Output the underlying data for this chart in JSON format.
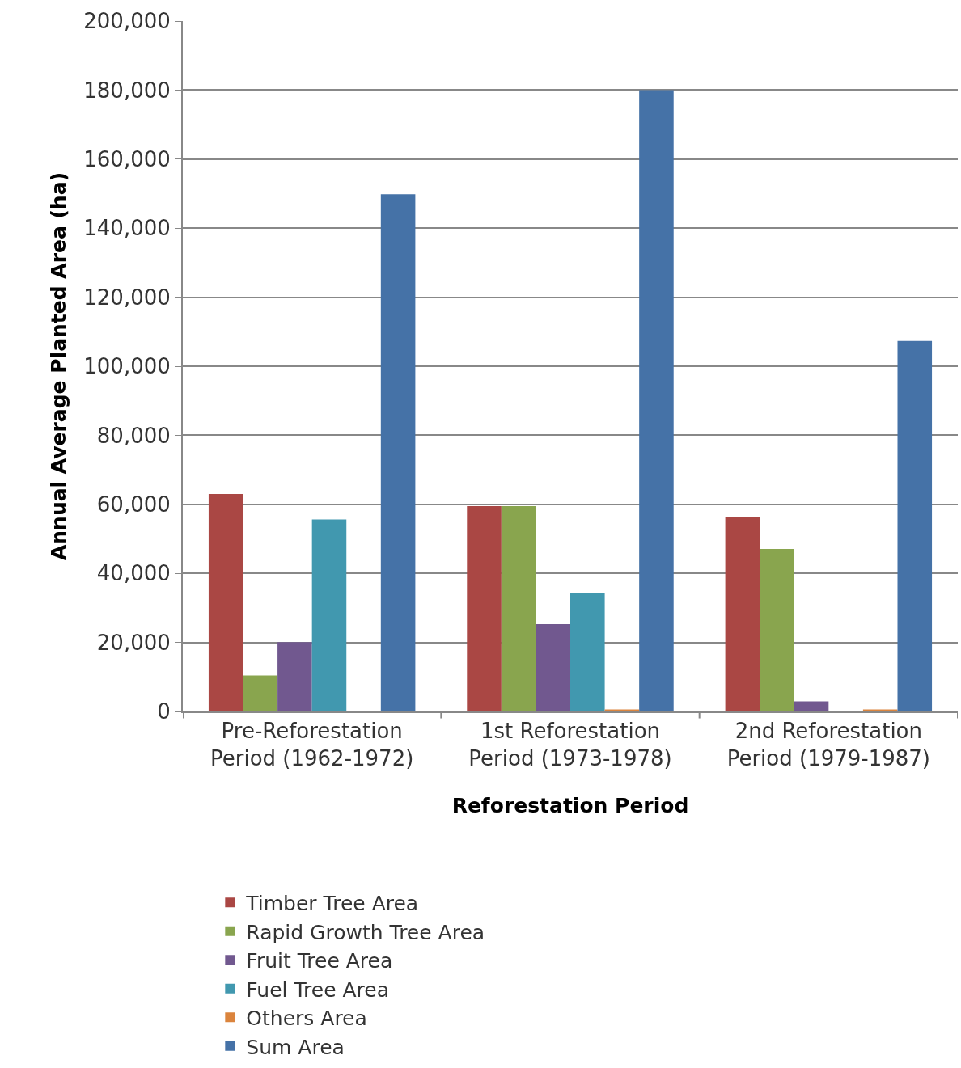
{
  "chart_data": {
    "type": "bar",
    "xlabel": "Reforestation Period",
    "ylabel": "Annual Average Planted Area (ha)",
    "categories": [
      "Pre-Reforestation Period (1962-1972)",
      "1st Reforestation Period (1973-1978)",
      "2nd Reforestation Period (1979-1987)"
    ],
    "series": [
      {
        "name": "Timber Tree Area",
        "color": "#aa4744",
        "values": [
          63000,
          59500,
          56200
        ]
      },
      {
        "name": "Rapid Growth Tree Area",
        "color": "#89a54e",
        "values": [
          10400,
          59500,
          47100
        ]
      },
      {
        "name": "Fruit Tree Area",
        "color": "#71588f",
        "values": [
          20100,
          25300,
          2900
        ]
      },
      {
        "name": "Fuel Tree Area",
        "color": "#4198af",
        "values": [
          55600,
          34400,
          0
        ]
      },
      {
        "name": "Others Area",
        "color": "#db843d",
        "values": [
          0,
          600,
          600
        ]
      },
      {
        "name": "Sum Area",
        "color": "#4572a7",
        "values": [
          149800,
          180000,
          107300
        ]
      }
    ],
    "ylim": [
      0,
      200000
    ],
    "yticks": [
      {
        "value": 0,
        "label": "0"
      },
      {
        "value": 20000,
        "label": "20,000"
      },
      {
        "value": 40000,
        "label": "40,000"
      },
      {
        "value": 60000,
        "label": "60,000"
      },
      {
        "value": 80000,
        "label": "80,000"
      },
      {
        "value": 100000,
        "label": "100,000"
      },
      {
        "value": 120000,
        "label": "120,000"
      },
      {
        "value": 140000,
        "label": "140,000"
      },
      {
        "value": 160000,
        "label": "160,000"
      },
      {
        "value": 180000,
        "label": "180,000"
      },
      {
        "value": 200000,
        "label": "200,000"
      }
    ],
    "grid": "y",
    "legend": "bottom"
  }
}
